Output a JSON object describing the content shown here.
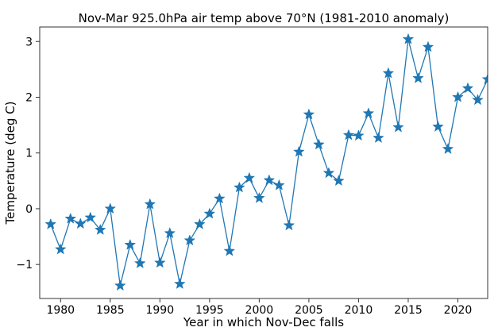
{
  "chart_data": {
    "type": "line",
    "title": "Nov-Mar 925.0hPa air temp above 70°N (1981-2010 anomaly)",
    "xlabel": "Year in which Nov-Dec falls",
    "ylabel": "Temperature (deg C)",
    "xlim": [
      1977.9,
      2023
    ],
    "ylim": [
      -1.61,
      3.26
    ],
    "xticks": [
      1980,
      1985,
      1990,
      1995,
      2000,
      2005,
      2010,
      2015,
      2020
    ],
    "yticks": [
      -1,
      0,
      1,
      2,
      3
    ],
    "grid": false,
    "marker": "star",
    "color": "#1f77b4",
    "x": [
      1979,
      1980,
      1981,
      1982,
      1983,
      1984,
      1985,
      1986,
      1987,
      1988,
      1989,
      1990,
      1991,
      1992,
      1993,
      1994,
      1995,
      1996,
      1997,
      1998,
      1999,
      2000,
      2001,
      2002,
      2003,
      2004,
      2005,
      2006,
      2007,
      2008,
      2009,
      2010,
      2011,
      2012,
      2013,
      2014,
      2015,
      2016,
      2017,
      2018,
      2019,
      2020,
      2021,
      2022,
      2023
    ],
    "y": [
      -0.28,
      -0.73,
      -0.18,
      -0.27,
      -0.16,
      -0.38,
      0.0,
      -1.38,
      -0.65,
      -0.98,
      0.08,
      -0.97,
      -0.44,
      -1.35,
      -0.57,
      -0.28,
      -0.09,
      0.18,
      -0.76,
      0.38,
      0.55,
      0.19,
      0.51,
      0.42,
      -0.3,
      1.02,
      1.69,
      1.15,
      0.64,
      0.5,
      1.32,
      1.31,
      1.71,
      1.27,
      2.43,
      1.46,
      3.04,
      2.34,
      2.9,
      1.47,
      1.07,
      2.0,
      2.16,
      1.95,
      2.32
    ]
  }
}
